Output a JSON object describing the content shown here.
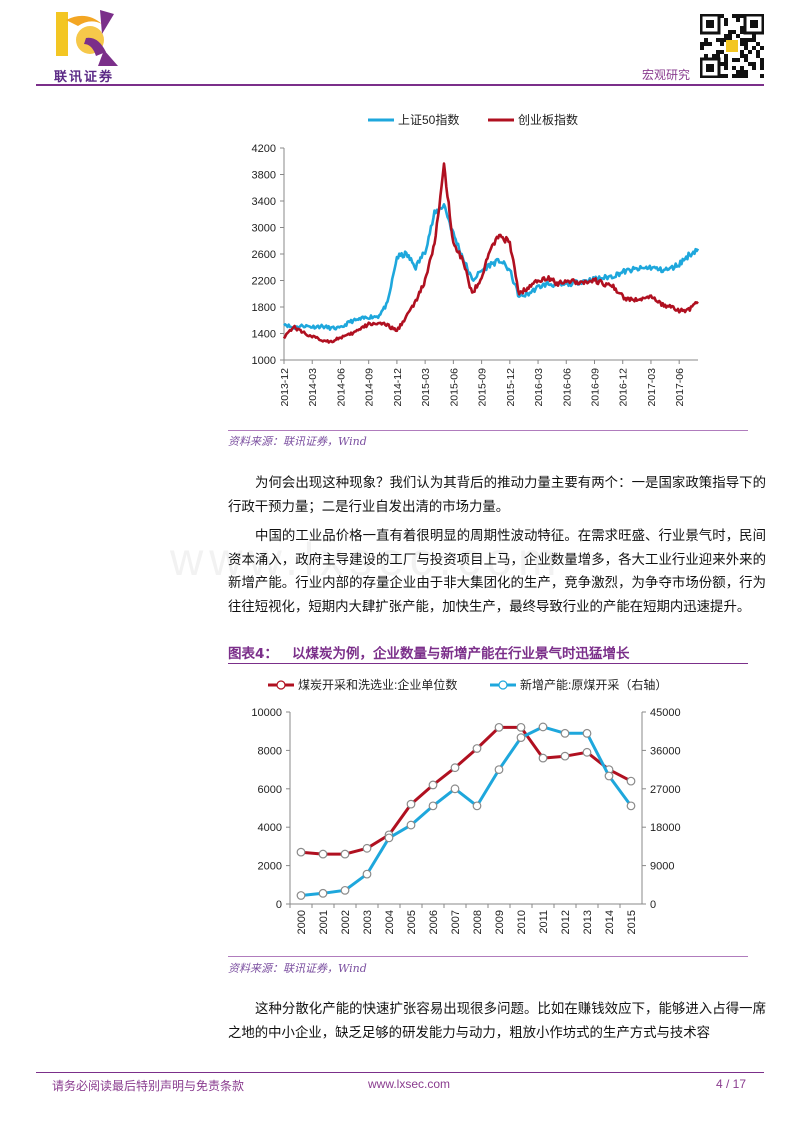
{
  "header": {
    "logo_text": "联讯证券",
    "category": "宏观研究"
  },
  "watermark": "www.lxsec.com",
  "colors": {
    "accent": "#7b2f8a",
    "sse50": "#1ea7dc",
    "chinext": "#b01020"
  },
  "chart1": {
    "source": "资料来源：联讯证券，Wind",
    "chart_data": {
      "type": "line",
      "legend_position": "top",
      "series": [
        {
          "name": "上证50指数",
          "x": [
            "2013-12",
            "2014-01",
            "2014-02",
            "2014-03",
            "2014-04",
            "2014-05",
            "2014-06",
            "2014-07",
            "2014-08",
            "2014-09",
            "2014-10",
            "2014-11",
            "2014-12",
            "2015-01",
            "2015-02",
            "2015-03",
            "2015-04",
            "2015-05",
            "2015-06",
            "2015-07",
            "2015-08",
            "2015-09",
            "2015-10",
            "2015-11",
            "2015-12",
            "2016-01",
            "2016-02",
            "2016-03",
            "2016-04",
            "2016-05",
            "2016-06",
            "2016-07",
            "2016-08",
            "2016-09",
            "2016-10",
            "2016-11",
            "2016-12",
            "2017-01",
            "2017-02",
            "2017-03",
            "2017-04",
            "2017-05",
            "2017-06",
            "2017-07",
            "2017-08"
          ],
          "values": [
            1550,
            1480,
            1520,
            1500,
            1510,
            1480,
            1480,
            1580,
            1610,
            1650,
            1660,
            1850,
            2550,
            2600,
            2400,
            2650,
            3200,
            3350,
            2900,
            2550,
            2200,
            2350,
            2450,
            2500,
            2350,
            1950,
            2000,
            2100,
            2150,
            2130,
            2140,
            2170,
            2200,
            2220,
            2240,
            2270,
            2330,
            2360,
            2380,
            2400,
            2360,
            2370,
            2450,
            2580,
            2680
          ]
        },
        {
          "name": "创业板指数",
          "x": [
            "2013-12",
            "2014-01",
            "2014-02",
            "2014-03",
            "2014-04",
            "2014-05",
            "2014-06",
            "2014-07",
            "2014-08",
            "2014-09",
            "2014-10",
            "2014-11",
            "2014-12",
            "2015-01",
            "2015-02",
            "2015-03",
            "2015-04",
            "2015-05",
            "2015-06",
            "2015-07",
            "2015-08",
            "2015-09",
            "2015-10",
            "2015-11",
            "2015-12",
            "2016-01",
            "2016-02",
            "2016-03",
            "2016-04",
            "2016-05",
            "2016-06",
            "2016-07",
            "2016-08",
            "2016-09",
            "2016-10",
            "2016-11",
            "2016-12",
            "2017-01",
            "2017-02",
            "2017-03",
            "2017-04",
            "2017-05",
            "2017-06",
            "2017-07",
            "2017-08"
          ],
          "values": [
            1350,
            1500,
            1420,
            1350,
            1300,
            1280,
            1340,
            1380,
            1460,
            1540,
            1560,
            1520,
            1440,
            1660,
            1880,
            2200,
            2750,
            3900,
            2800,
            2500,
            2000,
            2250,
            2700,
            2900,
            2750,
            2000,
            2100,
            2200,
            2250,
            2150,
            2200,
            2180,
            2180,
            2200,
            2150,
            2100,
            1950,
            1900,
            1930,
            1950,
            1850,
            1800,
            1740,
            1760,
            1880
          ]
        }
      ],
      "ylim": [
        1000,
        4200
      ],
      "yticks": [
        "1000",
        "1400",
        "1800",
        "2200",
        "2600",
        "3000",
        "3400",
        "3800",
        "4200"
      ],
      "xticks": [
        "2013-12",
        "2014-03",
        "2014-06",
        "2014-09",
        "2014-12",
        "2015-03",
        "2015-06",
        "2015-09",
        "2015-12",
        "2016-03",
        "2016-06",
        "2016-09",
        "2016-12",
        "2017-03",
        "2017-06"
      ],
      "grid": false
    }
  },
  "body": {
    "p1": "为何会出现这种现象？我们认为其背后的推动力量主要有两个：一是国家政策指导下的行政干预力量；二是行业自发出清的市场力量。",
    "p2": "中国的工业品价格一直有着很明显的周期性波动特征。在需求旺盛、行业景气时，民间资本涌入，政府主导建设的工厂与投资项目上马，企业数量增多，各大工业行业迎来外来的新增产能。行业内部的存量企业由于非大集团化的生产，竞争激烈，为争夺市场份额，行为往往短视化，短期内大肆扩张产能，加快生产，最终导致行业的产能在短期内迅速提升。",
    "p3": "这种分散化产能的快速扩张容易出现很多问题。比如在赚钱效应下，能够进入占得一席之地的中小企业，缺乏足够的研发能力与动力，粗放小作坊式的生产方式与技术容"
  },
  "figure4": {
    "title": "图表4：   以煤炭为例，企业数量与新增产能在行业景气时迅猛增长",
    "source": "资料来源：联讯证券，Wind",
    "chart_data": {
      "type": "line",
      "legend_position": "top",
      "categories": [
        "2000",
        "2001",
        "2002",
        "2003",
        "2004",
        "2005",
        "2006",
        "2007",
        "2008",
        "2009",
        "2010",
        "2011",
        "2012",
        "2013",
        "2014",
        "2015"
      ],
      "series": [
        {
          "name": "煤炭开采和洗选业:企业单位数",
          "axis": "left",
          "values": [
            2700,
            2600,
            2600,
            2900,
            3600,
            5200,
            6200,
            7100,
            8100,
            9200,
            9200,
            7600,
            7700,
            7900,
            7000,
            6400
          ]
        },
        {
          "name": "新增产能:原煤开采（右轴）",
          "axis": "right",
          "values": [
            2000,
            2500,
            3200,
            7000,
            15500,
            18500,
            23000,
            27000,
            23000,
            31500,
            39000,
            41500,
            40000,
            40000,
            30000,
            23000
          ]
        }
      ],
      "ylim_left": [
        0,
        10000
      ],
      "yticks_left": [
        "0",
        "2000",
        "4000",
        "6000",
        "8000",
        "10000"
      ],
      "ylim_right": [
        0,
        45000
      ],
      "yticks_right": [
        "0",
        "9000",
        "18000",
        "27000",
        "36000",
        "45000"
      ],
      "grid": false
    }
  },
  "footer": {
    "disclaimer": "请务必阅读最后特别声明与免责条款",
    "url": "www.lxsec.com",
    "page": "4 / 17"
  }
}
